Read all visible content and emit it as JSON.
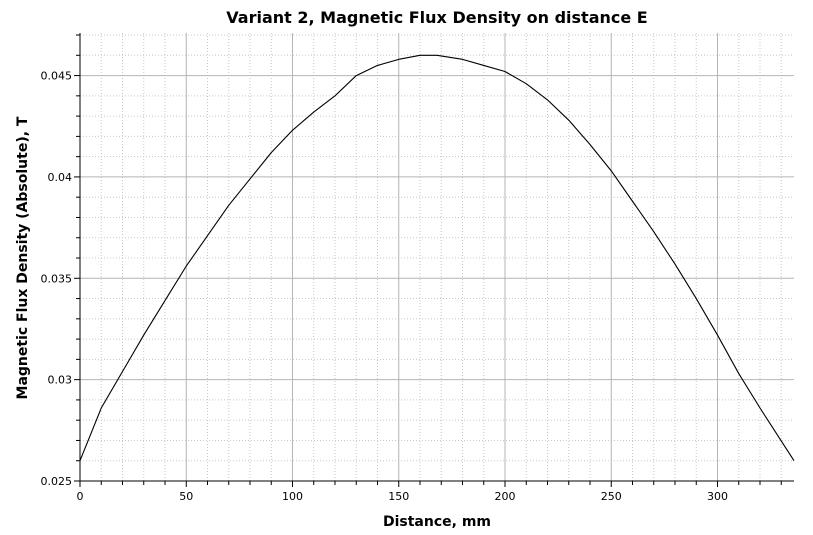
{
  "chart_data": {
    "type": "line",
    "title": "Variant 2,  Magnetic Flux Density on distance E",
    "xlabel": "Distance, mm",
    "ylabel": "Magnetic Flux Density (Absolute), T",
    "xlim": [
      0,
      336
    ],
    "ylim": [
      0.025,
      0.0471
    ],
    "x_ticks": [
      0,
      50,
      100,
      150,
      200,
      250,
      300
    ],
    "x_tick_labels": [
      "0",
      "50",
      "100",
      "150",
      "200",
      "250",
      "300"
    ],
    "y_ticks": [
      0.025,
      0.03,
      0.035,
      0.04,
      0.045
    ],
    "y_tick_labels": [
      "0.025",
      "0.03",
      "0.035",
      "0.04",
      "0.045"
    ],
    "grid": true,
    "minor_grid": true,
    "colors": {
      "line": "#000000",
      "major_grid": "#b4b4b4",
      "minor_grid": "#c8c8c8",
      "axis": "#000000"
    },
    "series": [
      {
        "x": [
          0,
          10,
          20,
          30,
          40,
          50,
          60,
          70,
          80,
          90,
          100,
          110,
          120,
          130,
          140,
          150,
          160,
          168,
          180,
          190,
          200,
          210,
          220,
          230,
          240,
          250,
          260,
          270,
          280,
          290,
          300,
          310,
          320,
          336
        ],
        "values": [
          0.026,
          0.0286,
          0.0304,
          0.0322,
          0.0339,
          0.0356,
          0.0371,
          0.0386,
          0.0399,
          0.0412,
          0.0423,
          0.0432,
          0.044,
          0.045,
          0.0455,
          0.0458,
          0.046,
          0.046,
          0.0458,
          0.0455,
          0.0452,
          0.0446,
          0.0438,
          0.0428,
          0.0416,
          0.0403,
          0.0388,
          0.0373,
          0.0357,
          0.034,
          0.0322,
          0.0303,
          0.0286,
          0.026
        ]
      }
    ]
  }
}
